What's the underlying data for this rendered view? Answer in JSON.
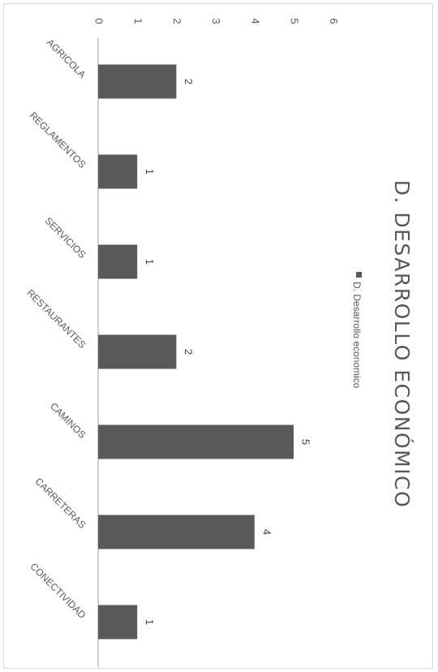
{
  "chart_data": {
    "type": "bar",
    "orientation": "horizontal",
    "title": "D. DESARROLLO ECONÓMICO",
    "categories": [
      "AGRICOLA",
      "REGLAMENTOS",
      "SERVICIOS",
      "RESTAURANTES",
      "CAMINOS",
      "CARRETERAS",
      "CONECTIVIDAD"
    ],
    "series": [
      {
        "name": "D. Desarrollo economico",
        "values": [
          2,
          1,
          1,
          2,
          5,
          4,
          1
        ],
        "color": "#595959"
      }
    ],
    "xlim": [
      0,
      6
    ],
    "ticks": [
      "0",
      "1",
      "2",
      "3",
      "4",
      "5",
      "6"
    ],
    "grid": false,
    "data_labels": true,
    "legend_position": "top"
  }
}
